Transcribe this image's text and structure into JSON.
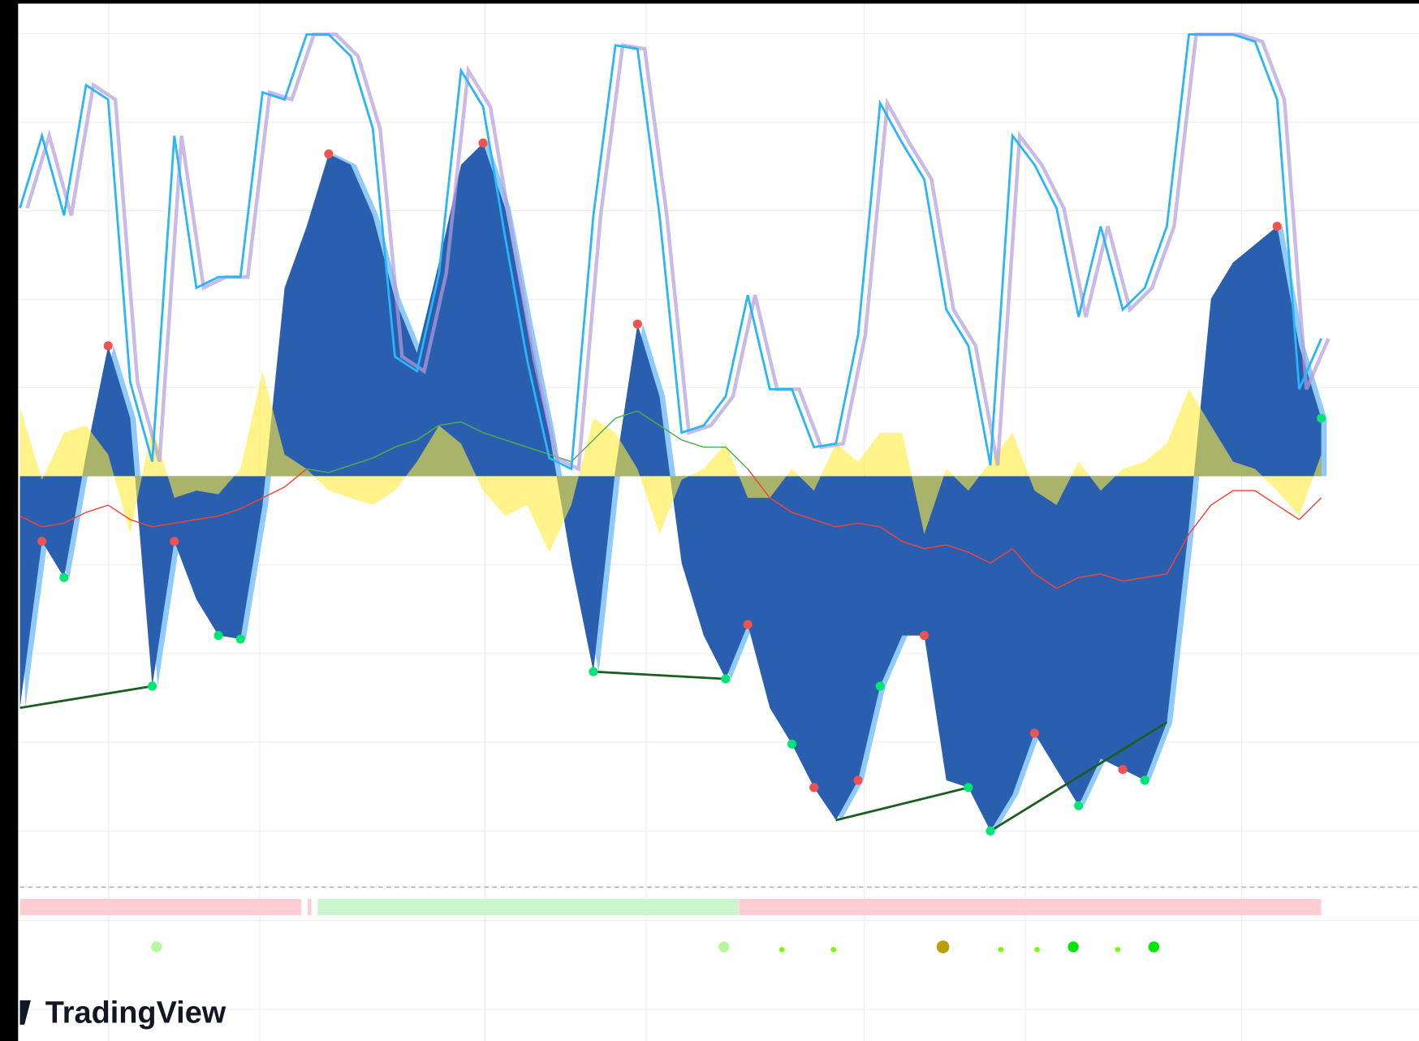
{
  "watermark": "TradingView",
  "chart_data": {
    "type": "oscillator",
    "x": [
      0,
      1,
      2,
      3,
      4,
      5,
      6,
      7,
      8,
      9,
      10,
      11,
      12,
      13,
      14,
      15,
      16,
      17,
      18,
      19,
      20,
      21,
      22,
      23,
      24,
      25,
      26,
      27,
      28,
      29,
      30,
      31,
      32,
      33,
      34,
      35,
      36,
      37,
      38,
      39,
      40,
      41,
      42,
      43,
      44,
      45,
      46,
      47,
      48,
      49,
      50,
      51,
      52,
      53,
      54,
      55,
      56,
      57,
      58,
      59
    ],
    "xlim": [
      0,
      59
    ],
    "ylim": [
      -110,
      125
    ],
    "grid": true,
    "series": [
      {
        "kind": "area",
        "color": "#2a5fb0",
        "halo": "#90caf9",
        "values": [
          -64,
          -18,
          -28,
          6,
          36,
          16,
          -58,
          -18,
          -34,
          -44,
          -45,
          -8,
          52,
          69,
          89,
          86,
          72,
          49,
          34,
          59,
          86,
          92,
          74,
          42,
          12,
          -24,
          -54,
          2,
          42,
          22,
          -24,
          -44,
          -56,
          -41,
          -64,
          -74,
          -86,
          -95,
          -84,
          -58,
          -44,
          -44,
          -84,
          -86,
          -98,
          -88,
          -71,
          -81,
          -91,
          -78,
          -81,
          -84,
          -68,
          -14,
          49,
          59,
          64,
          69,
          36,
          16
        ]
      },
      {
        "kind": "area",
        "color": "#ffeb3b",
        "values": [
          19,
          -1,
          12,
          14,
          6,
          -16,
          14,
          -6,
          -4,
          -5,
          2,
          29,
          6,
          2,
          -4,
          -6,
          -8,
          -4,
          4,
          14,
          9,
          -4,
          -11,
          -8,
          -21,
          -8,
          16,
          12,
          2,
          -16,
          -1,
          2,
          9,
          -6,
          -6,
          2,
          -4,
          9,
          4,
          12,
          12,
          -16,
          2,
          -4,
          4,
          12,
          -4,
          -8,
          4,
          -4,
          2,
          4,
          9,
          24,
          14,
          4,
          2,
          -4,
          -11,
          6
        ]
      },
      {
        "kind": "signed-line",
        "color": "#f44336",
        "positive_color": "#4caf50",
        "values": [
          -11,
          -14,
          -13,
          -10,
          -8,
          -12,
          -14,
          -13,
          -12,
          -11,
          -9,
          -6,
          -3,
          2,
          1,
          3,
          5,
          8,
          10,
          14,
          15,
          12,
          10,
          8,
          6,
          4,
          10,
          16,
          18,
          14,
          10,
          8,
          8,
          2,
          -6,
          -10,
          -12,
          -14,
          -13,
          -14,
          -18,
          -20,
          -19,
          -21,
          -24,
          -20,
          -27,
          -31,
          -28,
          -27,
          -29,
          -28,
          -27,
          -16,
          -8,
          -4,
          -4,
          -8,
          -12,
          -6
        ]
      },
      {
        "kind": "line",
        "color": "#29b6f6",
        "shadow": "#b39ddb",
        "values": [
          74,
          94,
          72,
          108,
          104,
          26,
          4,
          94,
          52,
          55,
          55,
          106,
          104,
          122,
          122,
          116,
          96,
          33,
          29,
          56,
          112,
          102,
          66,
          32,
          5,
          2,
          72,
          119,
          118,
          72,
          12,
          14,
          22,
          50,
          24,
          24,
          8,
          9,
          39,
          103,
          92,
          82,
          46,
          36,
          3,
          94,
          86,
          74,
          44,
          69,
          46,
          52,
          69,
          122,
          122,
          122,
          120,
          104,
          24,
          38
        ]
      }
    ],
    "high_pivots": [
      1,
      4,
      7,
      14,
      21,
      28,
      33,
      36,
      38,
      41,
      46,
      50,
      57
    ],
    "low_pivots": [
      2,
      6,
      9,
      10,
      26,
      32,
      35,
      39,
      43,
      44,
      48,
      51,
      59
    ],
    "divergences": [
      [
        0,
        6
      ],
      [
        26,
        32
      ],
      [
        37,
        43
      ],
      [
        44,
        52
      ]
    ],
    "divergence_color": "#1b5e20",
    "pivot_high_color": "#ef5350",
    "pivot_low_color": "#00e676"
  }
}
